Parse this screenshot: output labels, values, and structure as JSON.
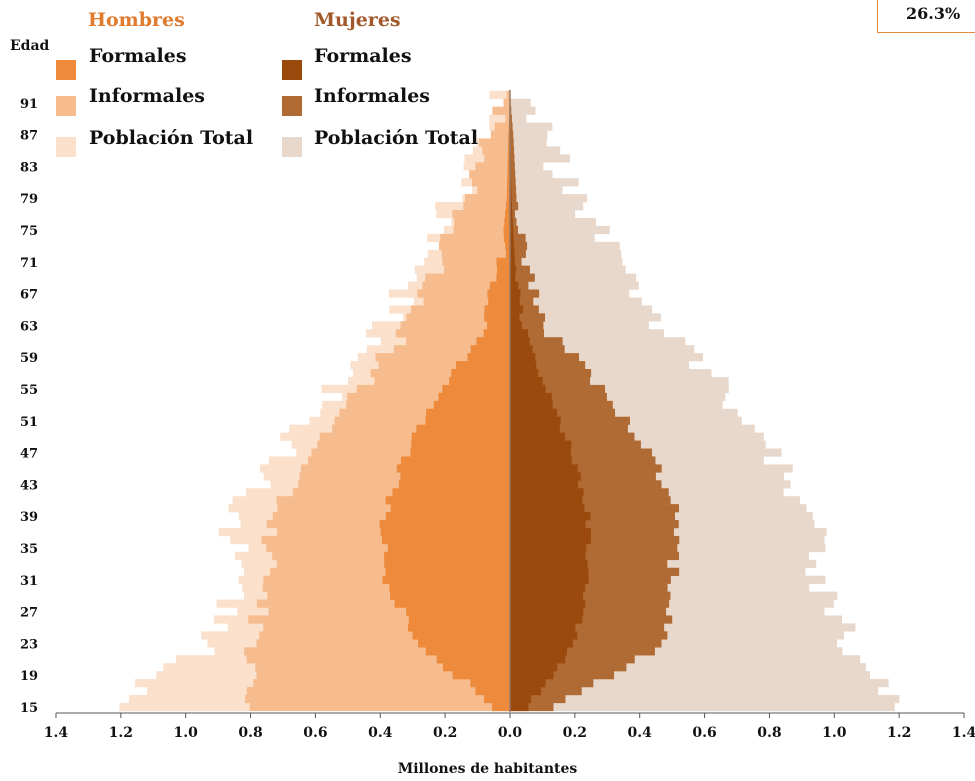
{
  "chart_data": {
    "type": "bar",
    "orientation": "horizontal-pyramid",
    "ylabel": "Edad",
    "xlabel": "Millones de habitantes",
    "age_range": [
      15,
      92
    ],
    "y_tick_labels": [
      "91",
      "87",
      "83",
      "79",
      "75",
      "71",
      "67",
      "63",
      "59",
      "55",
      "51",
      "47",
      "43",
      "39",
      "35",
      "31",
      "27",
      "23",
      "19",
      "15"
    ],
    "y_ticks": [
      91,
      87,
      83,
      79,
      75,
      71,
      67,
      63,
      59,
      55,
      51,
      47,
      43,
      39,
      35,
      31,
      27,
      23,
      19,
      15
    ],
    "x_tick_labels": [
      "1.4",
      "1.2",
      "1.0",
      "0.8",
      "0.6",
      "0.4",
      "0.2",
      "0.0",
      "0.2",
      "0.4",
      "0.6",
      "0.8",
      "1.0",
      "1.2",
      "1.4"
    ],
    "x_ticks": [
      -1.4,
      -1.2,
      -1.0,
      -0.8,
      -0.6,
      -0.4,
      -0.2,
      0.0,
      0.2,
      0.4,
      0.6,
      0.8,
      1.0,
      1.2,
      1.4
    ],
    "xlim": [
      -1.4,
      1.4
    ],
    "legend": {
      "hombres_title": "Hombres",
      "mujeres_title": "Mujeres",
      "items": [
        "Formales",
        "Informales",
        "Población Total"
      ]
    },
    "annotation": "26.3%",
    "colors": {
      "hombres_formales": "#ed8a3b",
      "hombres_informales": "#f6bc8e",
      "hombres_total": "#fbe1cc",
      "mujeres_formales": "#9a4a0c",
      "mujeres_informales": "#b06a33",
      "mujeres_total": "#e8d8cc",
      "title_hombres": "#e07a2d",
      "title_mujeres": "#a2582a"
    },
    "anchors": {
      "age": [
        15,
        23,
        31,
        39,
        47,
        55,
        63,
        71,
        79,
        87,
        92
      ],
      "hombres_total": [
        1.22,
        0.92,
        0.83,
        0.86,
        0.7,
        0.54,
        0.38,
        0.27,
        0.17,
        0.08,
        0.02
      ],
      "hombres_informales": [
        0.82,
        0.8,
        0.74,
        0.74,
        0.62,
        0.46,
        0.31,
        0.22,
        0.14,
        0.06,
        0.01
      ],
      "hombres_formales": [
        0.05,
        0.28,
        0.38,
        0.39,
        0.32,
        0.21,
        0.08,
        0.03,
        0.01,
        0.005,
        0.0
      ],
      "mujeres_total": [
        1.17,
        1.05,
        0.96,
        0.94,
        0.79,
        0.66,
        0.45,
        0.33,
        0.2,
        0.1,
        0.02
      ],
      "mujeres_informales": [
        0.14,
        0.47,
        0.5,
        0.52,
        0.43,
        0.29,
        0.1,
        0.05,
        0.02,
        0.01,
        0.0
      ],
      "mujeres_formales": [
        0.05,
        0.2,
        0.24,
        0.24,
        0.19,
        0.11,
        0.04,
        0.015,
        0.005,
        0.0,
        0.0
      ]
    }
  }
}
